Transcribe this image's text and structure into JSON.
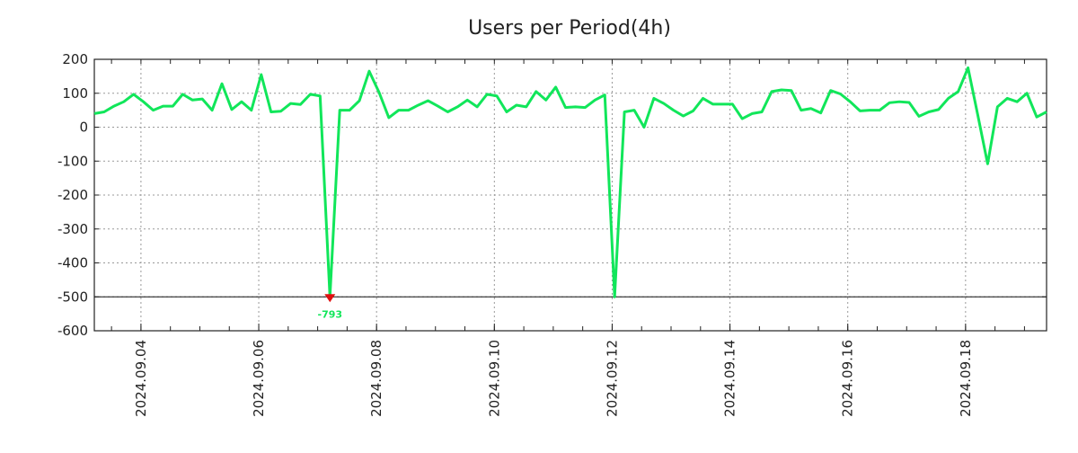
{
  "chart_data": {
    "type": "line",
    "title": "Users per Period(4h)",
    "xlabel": "",
    "ylabel": "",
    "x_start": "2024-09-03T05:00",
    "step_hours": 4,
    "ylim": [
      -600,
      200
    ],
    "yticks": [
      200,
      100,
      0,
      -100,
      -200,
      -300,
      -400,
      -500,
      -600
    ],
    "xticks": [
      "2024.09.04",
      "2024.09.06",
      "2024.09.08",
      "2024.09.10",
      "2024.09.12",
      "2024.09.14",
      "2024.09.16",
      "2024.09.18"
    ],
    "grid": true,
    "clip_line": -500,
    "min_label": "-793",
    "colors": {
      "line": "#11e65a",
      "marker": "#e01010",
      "grid": "#999999"
    },
    "series": [
      {
        "name": "Users",
        "values": [
          40,
          45,
          62,
          75,
          97,
          75,
          50,
          62,
          62,
          97,
          80,
          83,
          50,
          128,
          52,
          75,
          50,
          155,
          45,
          47,
          70,
          67,
          97,
          92,
          -793,
          50,
          50,
          78,
          165,
          103,
          28,
          50,
          50,
          65,
          78,
          62,
          45,
          60,
          80,
          60,
          97,
          92,
          45,
          65,
          60,
          105,
          80,
          118,
          58,
          60,
          58,
          80,
          95,
          -500,
          45,
          50,
          0,
          85,
          70,
          50,
          33,
          48,
          85,
          68,
          68,
          68,
          25,
          40,
          45,
          105,
          110,
          108,
          50,
          55,
          42,
          108,
          98,
          75,
          48,
          50,
          50,
          72,
          75,
          73,
          32,
          45,
          52,
          85,
          105,
          175,
          35,
          -108,
          60,
          85,
          75,
          100,
          30,
          45
        ]
      }
    ]
  }
}
